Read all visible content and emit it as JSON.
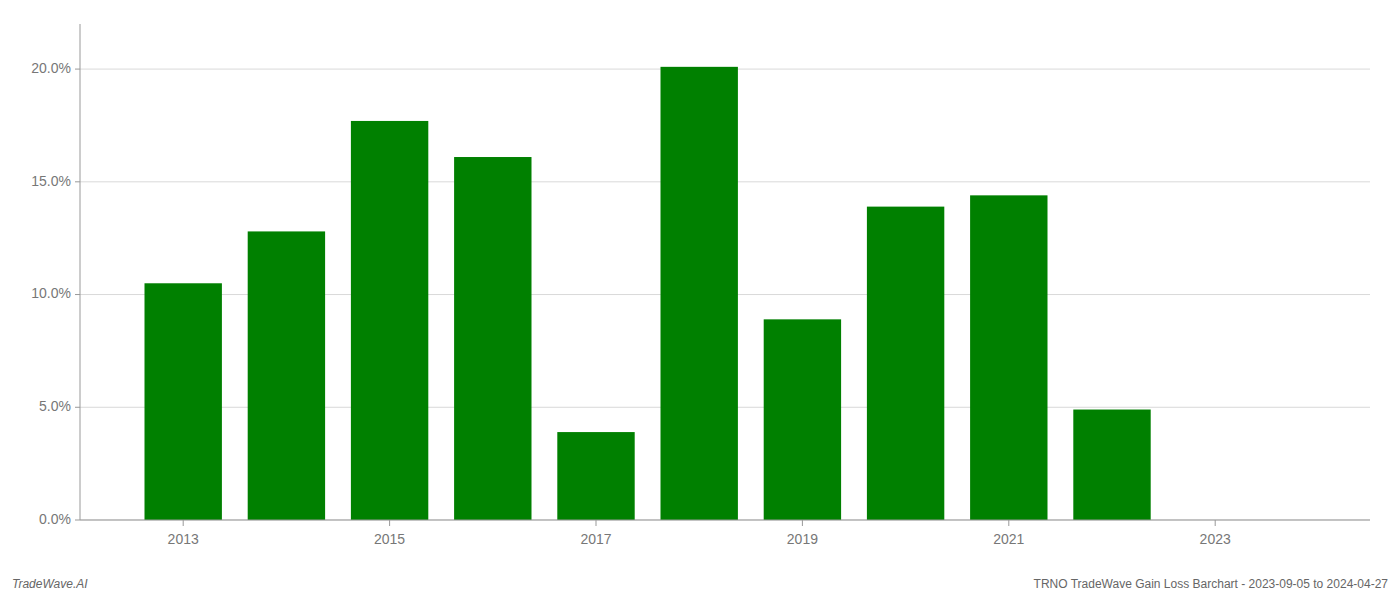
{
  "chart_data": {
    "type": "bar",
    "x": [
      2013,
      2014,
      2015,
      2016,
      2017,
      2018,
      2019,
      2020,
      2021,
      2022,
      2023
    ],
    "values": [
      0.105,
      0.128,
      0.177,
      0.161,
      0.039,
      0.201,
      0.089,
      0.139,
      0.144,
      0.049,
      0.0
    ],
    "color": "#008000",
    "xlim": [
      2012.0,
      2024.5
    ],
    "xticks": [
      2013,
      2015,
      2017,
      2019,
      2021,
      2023
    ],
    "ylim": [
      0,
      0.22
    ],
    "yticks": [
      {
        "value": 0.0,
        "label": "0.0%"
      },
      {
        "value": 0.05,
        "label": "5.0%"
      },
      {
        "value": 0.1,
        "label": "10.0%"
      },
      {
        "value": 0.15,
        "label": "15.0%"
      },
      {
        "value": 0.2,
        "label": "20.0%"
      }
    ],
    "grid": true,
    "annotations": [
      "TradeWave.AI",
      "TRNO TradeWave Gain Loss Barchart - 2023-09-05 to 2024-04-27"
    ]
  }
}
